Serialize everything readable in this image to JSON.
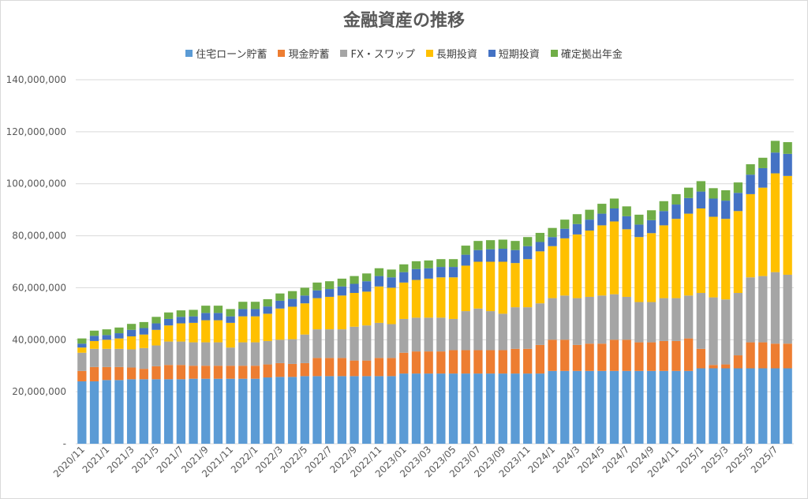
{
  "chart_data": {
    "type": "bar",
    "stacked": true,
    "title": "金融資産の推移",
    "legend_position": "top",
    "grid": true,
    "ylim": [
      0,
      140000000
    ],
    "yticks": [
      "-",
      "20,000,000",
      "40,000,000",
      "60,000,000",
      "80,000,000",
      "100,000,000",
      "120,000,000",
      "140,000,000"
    ],
    "xtick_labels": [
      "2020/11",
      "2021/1",
      "2021/3",
      "2021/5",
      "2021/7",
      "2021/9",
      "2021/11",
      "2022/1",
      "2022/3",
      "2022/5",
      "2022/7",
      "2022/9",
      "2022/11",
      "2023/01",
      "2023/03",
      "2023/05",
      "2023/07",
      "2023/09",
      "2023/11",
      "2024/1",
      "2024/3",
      "2024/5",
      "2024/7",
      "2024/9",
      "2024/11",
      "2025/1",
      "2025/3",
      "2025/5",
      "2025/7"
    ],
    "categories": [
      "2020/11",
      "2020/12",
      "2021/1",
      "2021/2",
      "2021/3",
      "2021/4",
      "2021/5",
      "2021/6",
      "2021/7",
      "2021/8",
      "2021/9",
      "2021/10",
      "2021/11",
      "2021/12",
      "2022/1",
      "2022/2",
      "2022/3",
      "2022/4",
      "2022/5",
      "2022/6",
      "2022/7",
      "2022/8",
      "2022/9",
      "2022/10",
      "2022/11",
      "2022/12",
      "2023/01",
      "2023/02",
      "2023/03",
      "2023/04",
      "2023/05",
      "2023/06",
      "2023/07",
      "2023/08",
      "2023/09",
      "2023/10",
      "2023/11",
      "2023/12",
      "2024/1",
      "2024/2",
      "2024/3",
      "2024/4",
      "2024/5",
      "2024/6",
      "2024/7",
      "2024/8",
      "2024/9",
      "2024/10",
      "2024/11",
      "2024/12",
      "2025/1",
      "2025/2",
      "2025/3",
      "2025/4",
      "2025/5",
      "2025/6",
      "2025/7",
      "2025/8"
    ],
    "series": [
      {
        "name": "住宅ローン貯蓄",
        "color": "#5b9bd5",
        "values": [
          24000000,
          24000000,
          24500000,
          24500000,
          24800000,
          24800000,
          24800000,
          24800000,
          24800000,
          25000000,
          25000000,
          25000000,
          25000000,
          25000000,
          25000000,
          25500000,
          25700000,
          25700000,
          26000000,
          26000000,
          26000000,
          26000000,
          26000000,
          26000000,
          26000000,
          26000000,
          27000000,
          27000000,
          27000000,
          27000000,
          27000000,
          27000000,
          27000000,
          27000000,
          27000000,
          27000000,
          27000000,
          27000000,
          28000000,
          28000000,
          28000000,
          28000000,
          28000000,
          28000000,
          28000000,
          28000000,
          28000000,
          28000000,
          28000000,
          28000000,
          29000000,
          29000000,
          29000000,
          29000000,
          29000000,
          29000000,
          29000000,
          29000000
        ]
      },
      {
        "name": "現金貯蓄",
        "color": "#ed7d31",
        "values": [
          4000000,
          5500000,
          5000000,
          5000000,
          4500000,
          4000000,
          5000000,
          5500000,
          5500000,
          5000000,
          5000000,
          5000000,
          5000000,
          5000000,
          5000000,
          5000000,
          5300000,
          5000000,
          5000000,
          7000000,
          7000000,
          7000000,
          6000000,
          6000000,
          7000000,
          7000000,
          8000000,
          8500000,
          8500000,
          8500000,
          9000000,
          9000000,
          9000000,
          9000000,
          9000000,
          9500000,
          9500000,
          11000000,
          12000000,
          12000000,
          10000000,
          10500000,
          10500000,
          12000000,
          12000000,
          11000000,
          11000000,
          11500000,
          11500000,
          12500000,
          7500000,
          1300000,
          1500000,
          5000000,
          10000000,
          10000000,
          9500000,
          9500000
        ]
      },
      {
        "name": "FX・スワップ",
        "color": "#a5a5a5",
        "values": [
          7000000,
          7000000,
          7000000,
          7000000,
          7000000,
          8000000,
          8000000,
          9000000,
          9000000,
          9000000,
          9000000,
          9000000,
          7000000,
          9000000,
          9000000,
          9000000,
          9000000,
          9500000,
          11000000,
          11000000,
          11000000,
          11000000,
          13000000,
          13500000,
          13500000,
          13000000,
          13000000,
          13000000,
          13000000,
          13000000,
          12000000,
          15000000,
          16000000,
          15000000,
          14000000,
          16000000,
          16000000,
          16000000,
          16000000,
          17000000,
          18000000,
          18000000,
          18500000,
          17500000,
          16500000,
          15500000,
          15500000,
          16500000,
          16500000,
          16500000,
          21500000,
          26000000,
          25000000,
          24000000,
          25000000,
          25500000,
          27500000,
          26500000
        ]
      },
      {
        "name": "長期投資",
        "color": "#ffc000",
        "values": [
          2000000,
          3000000,
          3500000,
          4000000,
          5000000,
          5200000,
          6000000,
          6200000,
          7000000,
          7500000,
          8500000,
          8500000,
          9500000,
          10000000,
          10000000,
          10500000,
          12000000,
          12500000,
          12000000,
          12000000,
          12500000,
          13000000,
          13000000,
          13000000,
          14000000,
          14000000,
          14000000,
          14500000,
          15000000,
          15500000,
          16000000,
          17500000,
          18000000,
          19000000,
          20000000,
          17000000,
          18500000,
          20000000,
          20000000,
          22000000,
          24500000,
          25500000,
          27000000,
          28000000,
          26000000,
          25000000,
          26500000,
          28000000,
          30500000,
          31500000,
          32500000,
          31000000,
          31000000,
          31500000,
          32000000,
          34000000,
          38000000,
          38000000
        ]
      },
      {
        "name": "短期投資",
        "color": "#4472c4",
        "values": [
          1500000,
          2000000,
          1800000,
          2000000,
          2500000,
          2500000,
          2500000,
          2500000,
          2500000,
          2500000,
          2800000,
          2800000,
          2500000,
          2800000,
          2800000,
          2800000,
          3000000,
          3000000,
          3000000,
          3000000,
          3000000,
          3500000,
          3500000,
          4000000,
          4000000,
          4000000,
          4000000,
          4200000,
          4000000,
          4000000,
          4000000,
          4200000,
          4500000,
          4800000,
          5000000,
          5000000,
          5000000,
          3600000,
          3500000,
          3700000,
          4000000,
          4200000,
          4500000,
          5000000,
          5000000,
          4800000,
          5000000,
          5500000,
          5500000,
          6000000,
          6500000,
          7000000,
          7000000,
          7000000,
          7500000,
          7500000,
          8000000,
          8500000
        ]
      },
      {
        "name": "確定拠出年金",
        "color": "#70ad47",
        "values": [
          2000000,
          2000000,
          2200000,
          2200000,
          2300000,
          2300000,
          2500000,
          2500000,
          2500000,
          2500000,
          2800000,
          2800000,
          2800000,
          2800000,
          2800000,
          2800000,
          2800000,
          3000000,
          3000000,
          3000000,
          3000000,
          3000000,
          3000000,
          3000000,
          3000000,
          3000000,
          3000000,
          3000000,
          3000000,
          3000000,
          3000000,
          3500000,
          3500000,
          3500000,
          3500000,
          3500000,
          3500000,
          3500000,
          3500000,
          3500000,
          3800000,
          3800000,
          3800000,
          3800000,
          3800000,
          3800000,
          3800000,
          3800000,
          4000000,
          4000000,
          4000000,
          4000000,
          4000000,
          4000000,
          4000000,
          4000000,
          4500000,
          4500000
        ]
      }
    ]
  }
}
